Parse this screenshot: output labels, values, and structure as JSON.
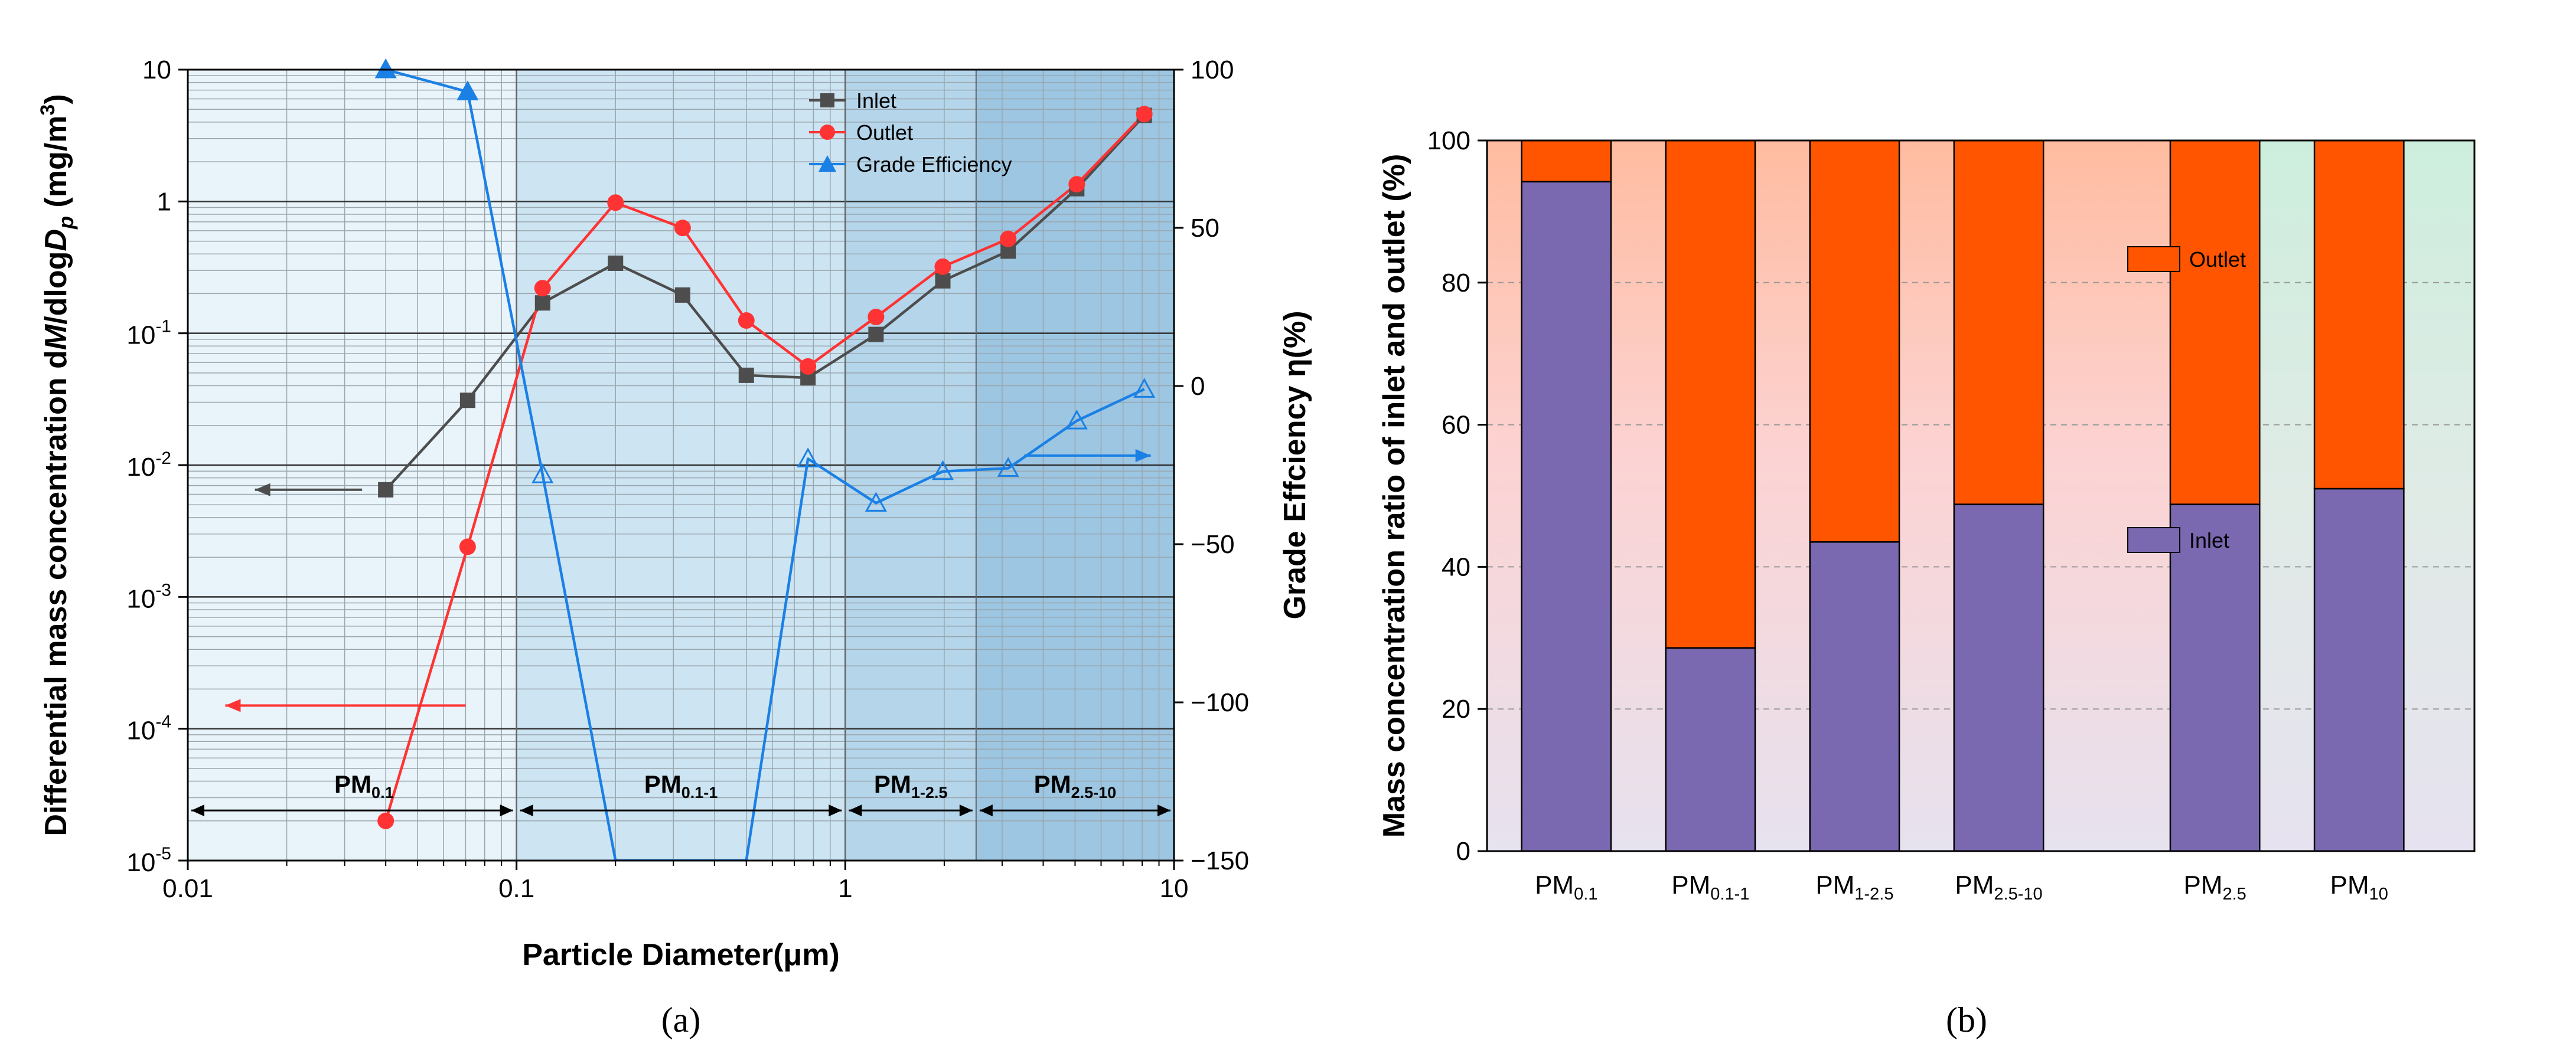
{
  "figure": {
    "panel_a_label": "(a)",
    "panel_b_label": "(b)"
  },
  "chart_data": [
    {
      "type": "line",
      "panel": "a",
      "xlabel": "Particle Diameter(μm)",
      "ylabel_left": "Differential mass concentration dM/dlogDp (mg/m3)",
      "ylabel_right": "Grade Effciency η(%)",
      "x_scale": "log",
      "xlim": [
        0.01,
        10
      ],
      "x_ticks": [
        {
          "value": 0.01,
          "label": "0.01"
        },
        {
          "value": 0.1,
          "label": "0.1"
        },
        {
          "value": 1,
          "label": "1"
        },
        {
          "value": 10,
          "label": "10"
        }
      ],
      "y_scale": "log",
      "ylim": [
        1e-05,
        10
      ],
      "y_ticks": [
        {
          "value": 10,
          "label": "10"
        },
        {
          "value": 1,
          "label": "1"
        },
        {
          "value": 0.1,
          "base": "10",
          "exp": "-1"
        },
        {
          "value": 0.01,
          "base": "10",
          "exp": "-2"
        },
        {
          "value": 0.001,
          "base": "10",
          "exp": "-3"
        },
        {
          "value": 0.0001,
          "base": "10",
          "exp": "-4"
        },
        {
          "value": 1e-05,
          "base": "10",
          "exp": "-5"
        }
      ],
      "y2lim": [
        -150,
        100
      ],
      "y2_ticks": [
        {
          "value": 100,
          "label": "100"
        },
        {
          "value": 50,
          "label": "50"
        },
        {
          "value": 0,
          "label": "0"
        },
        {
          "value": -50,
          "label": "−50"
        },
        {
          "value": -100,
          "label": "−100"
        },
        {
          "value": -150,
          "label": "−150"
        }
      ],
      "legend": {
        "position": "top-right",
        "entries": [
          "Inlet",
          "Outlet",
          "Grade Efficiency"
        ]
      },
      "series": [
        {
          "name": "Inlet",
          "axis": "left",
          "color": "#4d4d4d",
          "marker": "square",
          "x": [
            0.04,
            0.071,
            0.12,
            0.2,
            0.32,
            0.5,
            0.77,
            1.24,
            1.98,
            3.13,
            5.06,
            8.12
          ],
          "y": [
            0.0065,
            0.031,
            0.17,
            0.34,
            0.195,
            0.048,
            0.046,
            0.098,
            0.25,
            0.42,
            1.25,
            4.5
          ]
        },
        {
          "name": "Outlet",
          "axis": "left",
          "color": "#ff3333",
          "marker": "circle",
          "x": [
            0.04,
            0.071,
            0.12,
            0.2,
            0.32,
            0.5,
            0.77,
            1.24,
            1.98,
            3.13,
            5.06,
            8.12
          ],
          "y": [
            2e-05,
            0.0024,
            0.22,
            0.98,
            0.63,
            0.125,
            0.056,
            0.133,
            0.32,
            0.52,
            1.35,
            4.6
          ]
        },
        {
          "name": "Grade Efficiency",
          "axis": "right",
          "color": "#1a80e6",
          "marker": "triangle",
          "x": [
            0.04,
            0.071,
            0.12,
            0.2,
            0.5,
            0.77,
            1.24,
            1.98,
            3.13,
            5.06,
            8.12
          ],
          "y": [
            100,
            93,
            -28,
            -150,
            -150,
            -23,
            -37,
            -27,
            -26,
            -11,
            -1
          ],
          "hollow_marker_from_index": 2,
          "markers_hidden": [
            3,
            4
          ]
        }
      ],
      "regions": [
        {
          "label": "PM",
          "sub": "0.1",
          "from": 0.01,
          "to": 0.1,
          "color": "#e8f3fa"
        },
        {
          "label": "PM",
          "sub": "0.1-1",
          "from": 0.1,
          "to": 1,
          "color": "#cde4f2"
        },
        {
          "label": "PM",
          "sub": "1-2.5",
          "from": 1,
          "to": 2.5,
          "color": "#b4d5ea"
        },
        {
          "label": "PM",
          "sub": "2.5-10",
          "from": 2.5,
          "to": 10,
          "color": "#9cc6e2"
        }
      ],
      "axis_arrows": [
        {
          "series": "Inlet",
          "direction": "left"
        },
        {
          "series": "Outlet",
          "direction": "left"
        },
        {
          "series": "Grade Efficiency",
          "direction": "right"
        }
      ]
    },
    {
      "type": "bar",
      "panel": "b",
      "stacked": true,
      "ylabel": "Mass concentration ratio of inlet and outlet (%)",
      "ylim": [
        0,
        100
      ],
      "y_ticks": [
        0,
        20,
        40,
        60,
        80,
        100
      ],
      "grid": "dashed",
      "categories": [
        {
          "label": "PM",
          "sub": "0.1"
        },
        {
          "label": "PM",
          "sub": "0.1-1"
        },
        {
          "label": "PM",
          "sub": "1-2.5"
        },
        {
          "label": "PM",
          "sub": "2.5-10"
        },
        {
          "label": "PM",
          "sub": "2.5"
        },
        {
          "label": "PM",
          "sub": "10"
        }
      ],
      "category_slots": [
        0.5,
        1.5,
        2.5,
        3.5,
        5.0,
        6.0
      ],
      "series": [
        {
          "name": "Inlet",
          "color": "#7a68b0",
          "values": [
            94.2,
            28.6,
            43.5,
            48.8,
            48.8,
            51.0
          ]
        },
        {
          "name": "Outlet",
          "color": "#ff5500",
          "values": [
            5.8,
            71.4,
            56.5,
            51.2,
            51.2,
            49.0
          ]
        }
      ],
      "legend": {
        "entries": [
          "Outlet",
          "Inlet"
        ]
      }
    }
  ]
}
